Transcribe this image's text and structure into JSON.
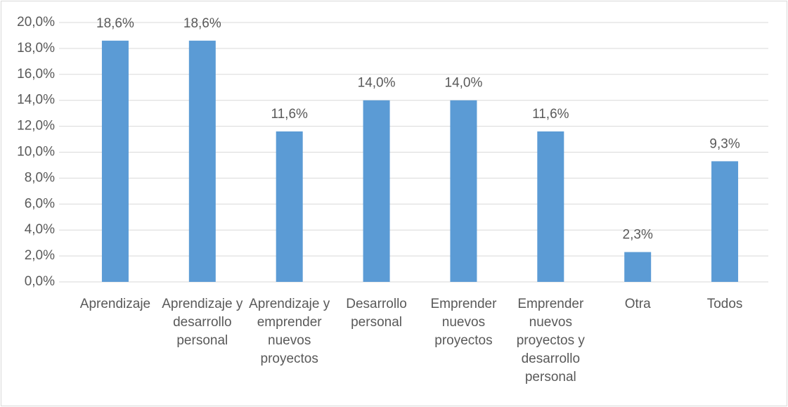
{
  "chart_data": {
    "type": "bar",
    "categories": [
      "Aprendizaje",
      "Aprendizaje y desarrollo personal",
      "Aprendizaje y emprender nuevos proyectos",
      "Desarrollo personal",
      "Emprender nuevos proyectos",
      "Emprender nuevos proyectos y desarrollo personal",
      "Otra",
      "Todos"
    ],
    "values": [
      18.6,
      18.6,
      11.6,
      14.0,
      14.0,
      11.6,
      2.3,
      9.3
    ],
    "value_labels": [
      "18,6%",
      "18,6%",
      "11,6%",
      "14,0%",
      "14,0%",
      "11,6%",
      "2,3%",
      "9,3%"
    ],
    "color": "#5b9bd5",
    "ylim": [
      0,
      20
    ],
    "yticks": [
      {
        "value": 0,
        "label": "0,0%"
      },
      {
        "value": 2,
        "label": "2,0%"
      },
      {
        "value": 4,
        "label": "4,0%"
      },
      {
        "value": 6,
        "label": "6,0%"
      },
      {
        "value": 8,
        "label": "8,0%"
      },
      {
        "value": 10,
        "label": "10,0%"
      },
      {
        "value": 12,
        "label": "12,0%"
      },
      {
        "value": 14,
        "label": "14,0%"
      },
      {
        "value": 16,
        "label": "16,0%"
      },
      {
        "value": 18,
        "label": "18,0%"
      },
      {
        "value": 20,
        "label": "20,0%"
      }
    ],
    "grid": true
  }
}
